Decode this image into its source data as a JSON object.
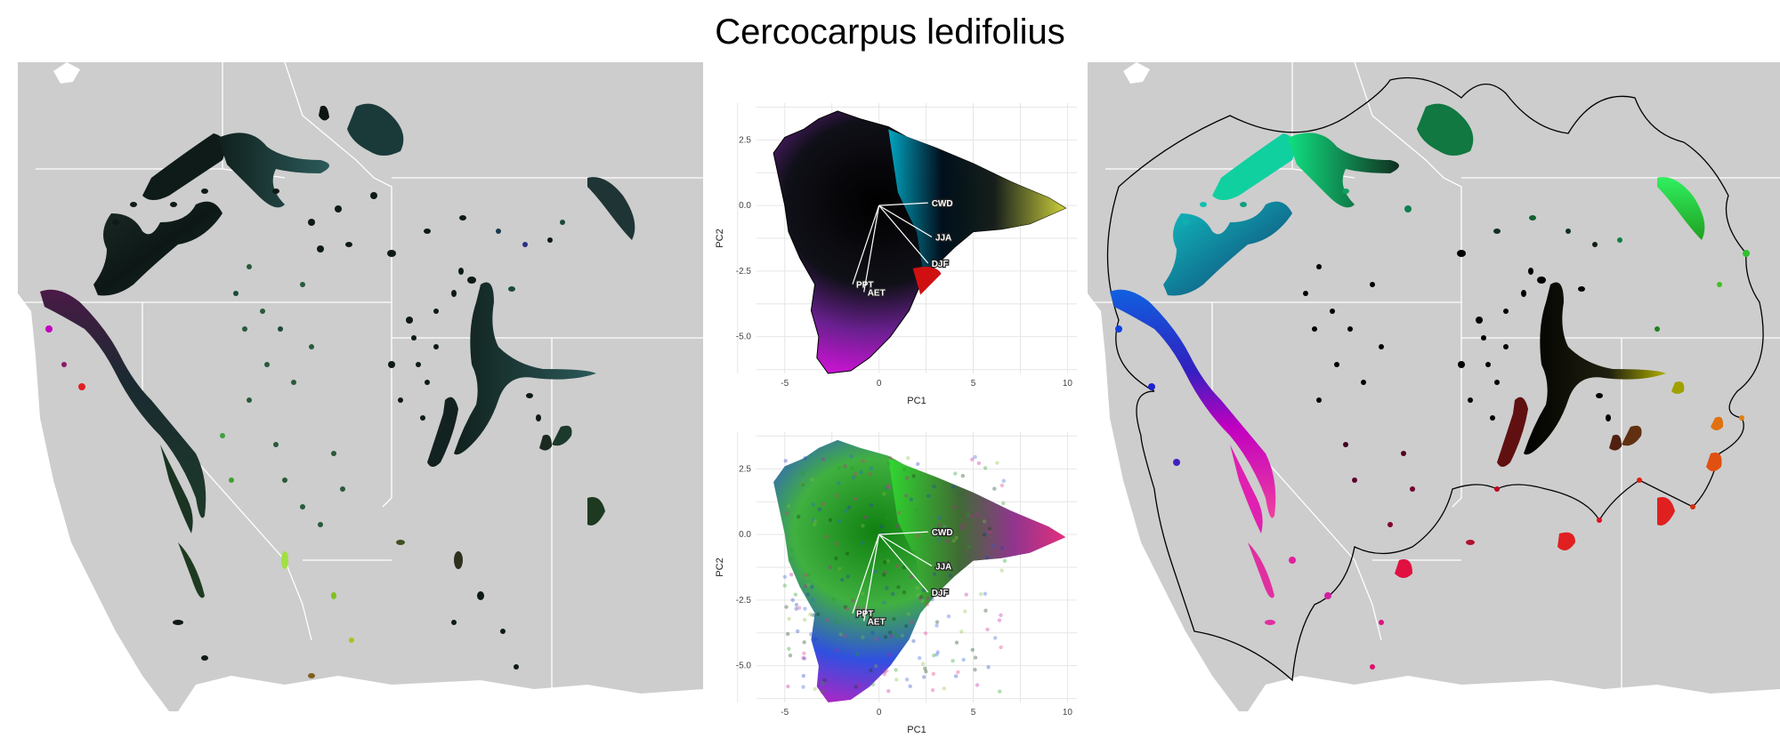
{
  "title": "Cercocarpus ledifolius",
  "colors": {
    "map_background": "#cdcdcd",
    "boundary": "#ffffff",
    "hull": "#000000",
    "page": "#ffffff"
  },
  "chart_data": [
    {
      "type": "scatter",
      "panel": "pca-top",
      "title": "",
      "xlabel": "PC1",
      "ylabel": "PC2",
      "xlim": [
        -6.5,
        10.5
      ],
      "ylim": [
        -6.4,
        3.9
      ],
      "xticks": [
        -5,
        0,
        5,
        10
      ],
      "yticks": [
        2.5,
        0.0,
        -2.5,
        -5.0
      ],
      "ytick_labels": [
        "2.5",
        "0.0",
        "-2.5",
        "-5.0"
      ],
      "grid": true,
      "legend": "none",
      "note": "point cloud colored by PCA color space",
      "vectors": [
        {
          "label": "CWD",
          "x": 2.6,
          "y": 0.1
        },
        {
          "label": "JJA",
          "x": 2.8,
          "y": -1.2
        },
        {
          "label": "DJF",
          "x": 2.6,
          "y": -2.2
        },
        {
          "label": "PPT",
          "x": -1.4,
          "y": -3.0
        },
        {
          "label": "AET",
          "x": -0.8,
          "y": -3.3
        }
      ]
    },
    {
      "type": "scatter",
      "panel": "pca-bottom",
      "title": "",
      "xlabel": "PC1",
      "ylabel": "PC2",
      "xlim": [
        -6.5,
        10.5
      ],
      "ylim": [
        -6.4,
        3.9
      ],
      "xticks": [
        -5,
        0,
        5,
        10
      ],
      "yticks": [
        2.5,
        0.0,
        -2.5,
        -5.0
      ],
      "ytick_labels": [
        "2.5",
        "0.0",
        "-2.5",
        "-5.0"
      ],
      "grid": true,
      "legend": "none",
      "note": "point cloud colored by transformed color space",
      "vectors": [
        {
          "label": "CWD",
          "x": 2.6,
          "y": 0.1
        },
        {
          "label": "JJA",
          "x": 2.8,
          "y": -1.2
        },
        {
          "label": "DJF",
          "x": 2.6,
          "y": -2.2
        },
        {
          "label": "PPT",
          "x": -1.4,
          "y": -3.0
        },
        {
          "label": "AET",
          "x": -0.8,
          "y": -3.3
        }
      ]
    }
  ]
}
